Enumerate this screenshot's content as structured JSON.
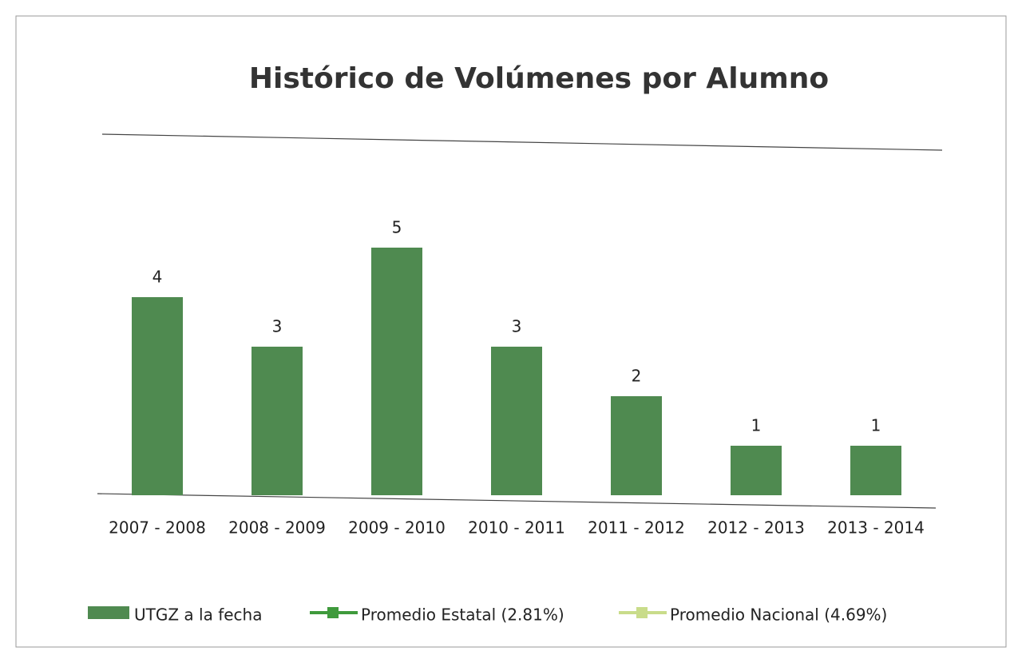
{
  "chart_data": {
    "type": "bar",
    "title": "Histórico de Volúmenes por Alumno",
    "categories": [
      "2007 - 2008",
      "2008 - 2009",
      "2009 - 2010",
      "2010 - 2011",
      "2011 - 2012",
      "2012 - 2013",
      "2013 - 2014"
    ],
    "series": [
      {
        "name": "UTGZ a la fecha",
        "type": "bar",
        "color": "#4f8a50",
        "values": [
          4,
          3,
          5,
          3,
          2,
          1,
          1
        ]
      },
      {
        "name": "Promedio Estatal (2.81%)",
        "type": "line",
        "color": "#3f9a3c"
      },
      {
        "name": "Promedio Nacional (4.69%)",
        "type": "line",
        "color": "#c9dc8a"
      }
    ]
  }
}
